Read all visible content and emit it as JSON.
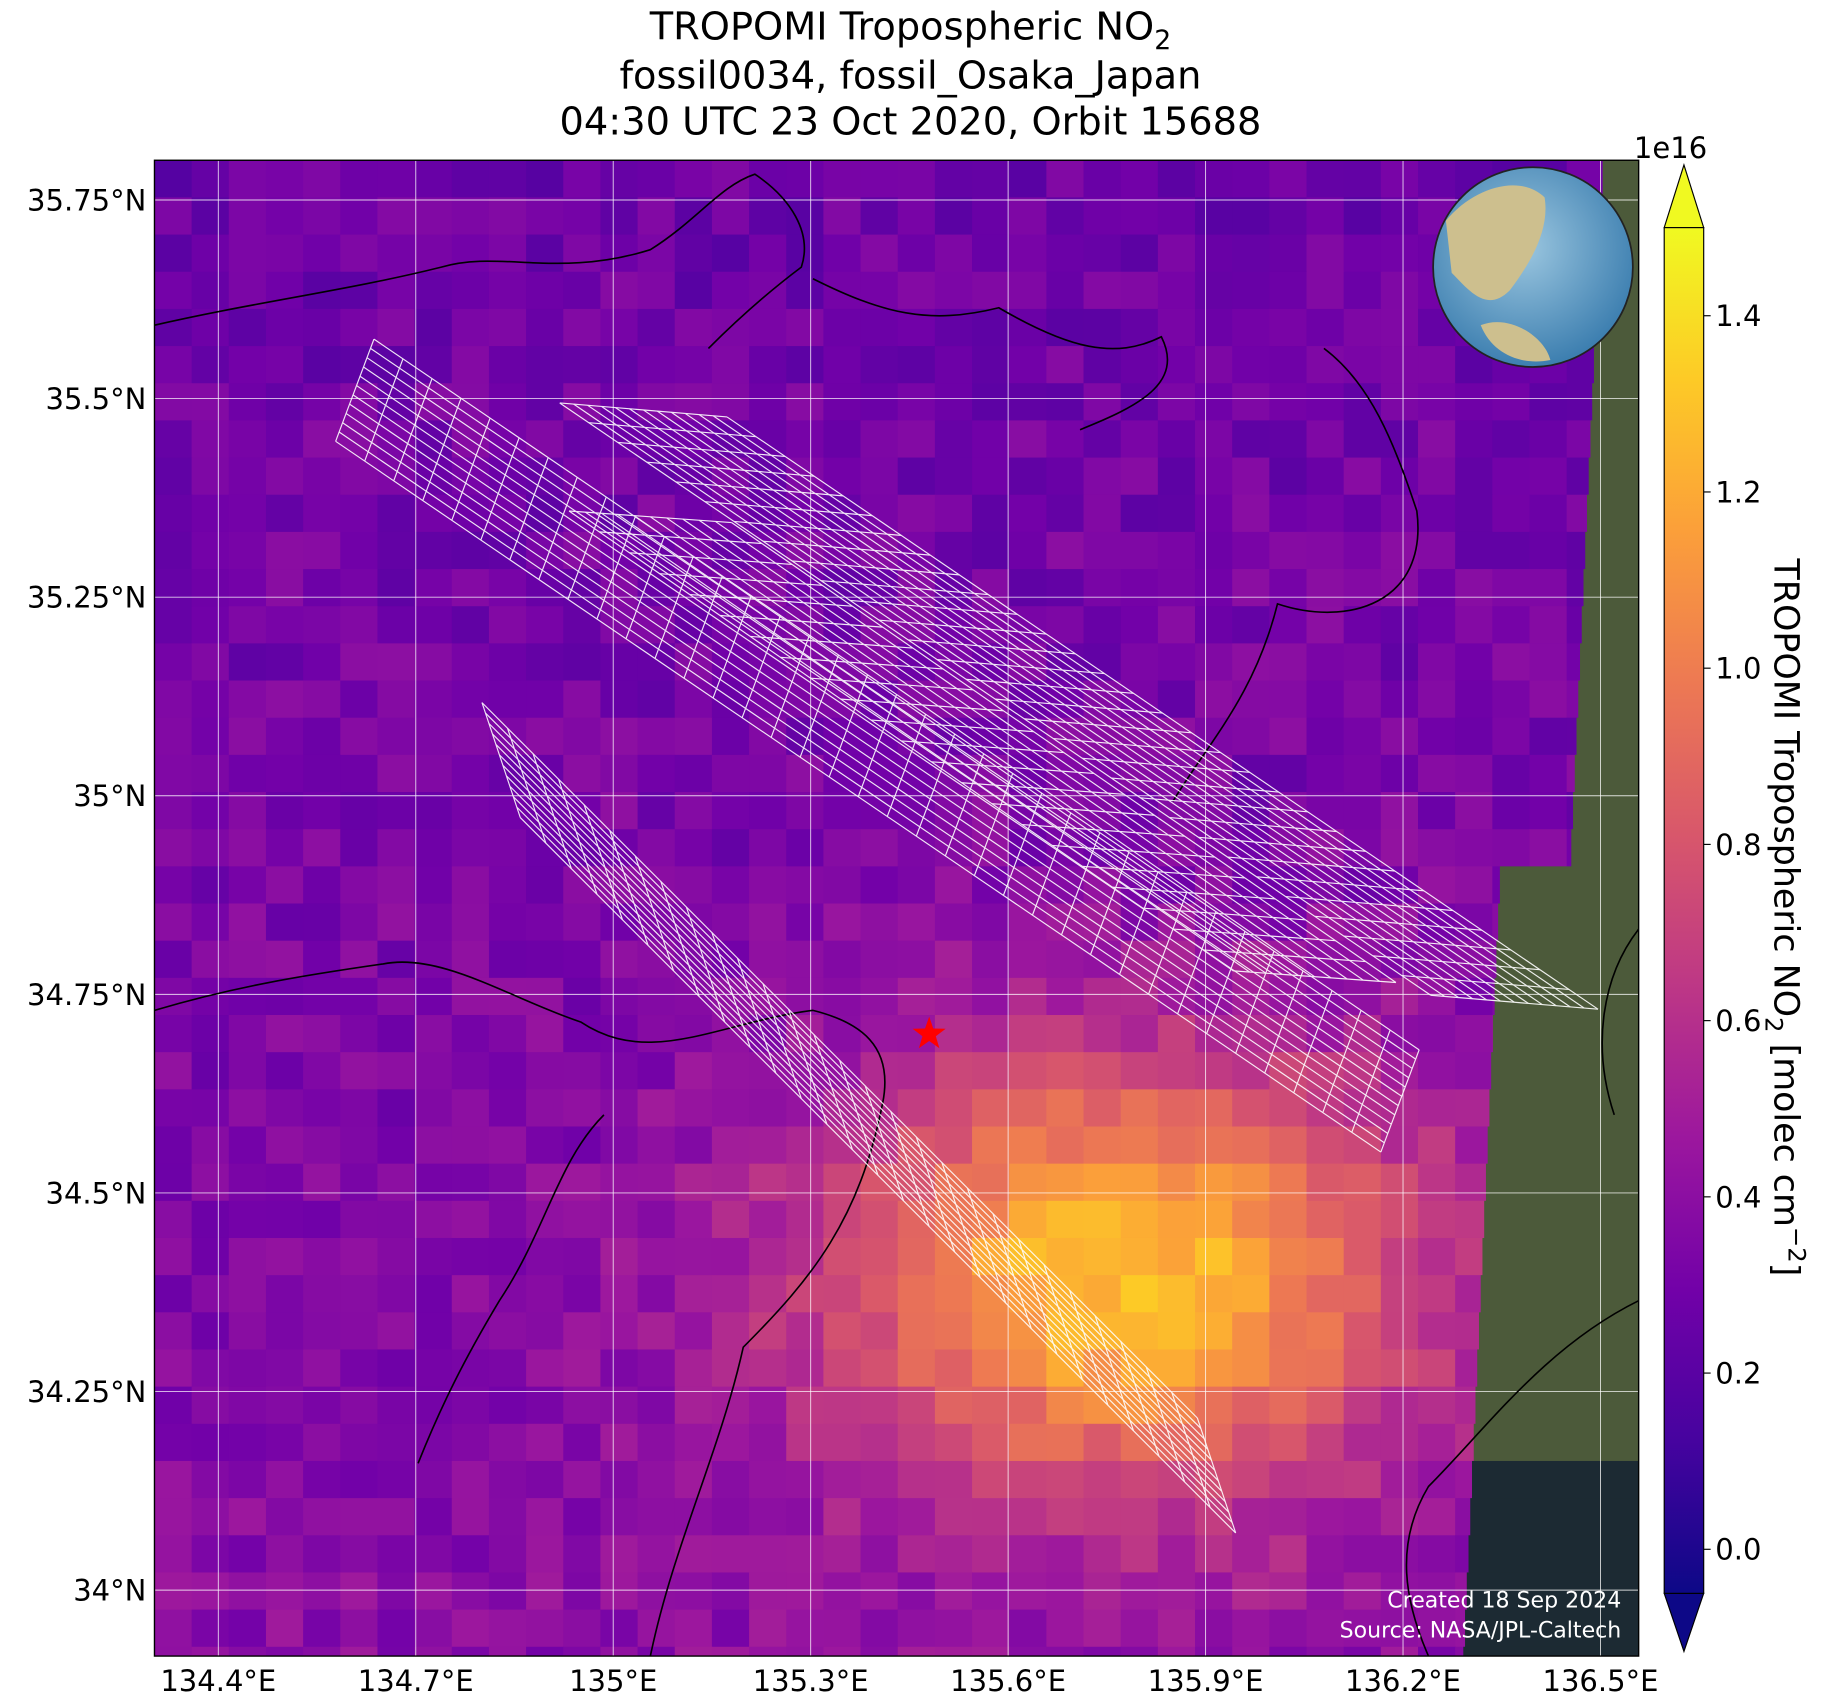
{
  "title": {
    "line1": "TROPOMI Tropospheric NO",
    "line1_sub": "2",
    "line2": "fossil0034, fossil_Osaka_Japan",
    "line3": "04:30 UTC 23 Oct 2020, Orbit 15688"
  },
  "map": {
    "xlim": [
      134.303,
      136.558
    ],
    "ylim": [
      33.917,
      35.8
    ],
    "xticks": [
      {
        "value": 134.4,
        "label": "134.4°E"
      },
      {
        "value": 134.7,
        "label": "134.7°E"
      },
      {
        "value": 135.0,
        "label": "135°E"
      },
      {
        "value": 135.3,
        "label": "135.3°E"
      },
      {
        "value": 135.6,
        "label": "135.6°E"
      },
      {
        "value": 135.9,
        "label": "135.9°E"
      },
      {
        "value": 136.2,
        "label": "136.2°E"
      },
      {
        "value": 136.5,
        "label": "136.5°E"
      }
    ],
    "yticks": [
      {
        "value": 35.75,
        "label": "35.75°N"
      },
      {
        "value": 35.5,
        "label": "35.5°N"
      },
      {
        "value": 35.25,
        "label": "35.25°N"
      },
      {
        "value": 35.0,
        "label": "35°N"
      },
      {
        "value": 34.75,
        "label": "34.75°N"
      },
      {
        "value": 34.5,
        "label": "34.5°N"
      },
      {
        "value": 34.25,
        "label": "34.25°N"
      },
      {
        "value": 34.0,
        "label": "34°N"
      }
    ],
    "grid": true,
    "target": {
      "lon": 135.48,
      "lat": 34.7,
      "color": "#ff0000"
    }
  },
  "colorbar": {
    "colormap": [
      "#0d0887",
      "#46039f",
      "#7201a8",
      "#9c179e",
      "#bd3786",
      "#d8576b",
      "#ed7953",
      "#fb9f3a",
      "#fdca26",
      "#f0f921"
    ],
    "clim": [
      -0.05,
      1.5
    ],
    "exponent": "1e16",
    "ticks": [
      {
        "value": 0.0,
        "label": "0.0"
      },
      {
        "value": 0.2,
        "label": "0.2"
      },
      {
        "value": 0.4,
        "label": "0.4"
      },
      {
        "value": 0.6,
        "label": "0.6"
      },
      {
        "value": 0.8,
        "label": "0.8"
      },
      {
        "value": 1.0,
        "label": "1.0"
      },
      {
        "value": 1.2,
        "label": "1.2"
      },
      {
        "value": 1.4,
        "label": "1.4"
      }
    ],
    "label": "TROPOMI Tropospheric NO",
    "label_sub": "2",
    "label_mid": " [molec cm",
    "label_sup": "−2",
    "label_end": "]"
  },
  "credits": {
    "created": "Created 18 Sep 2024",
    "source": "Source: NASA/JPL-Caltech"
  }
}
